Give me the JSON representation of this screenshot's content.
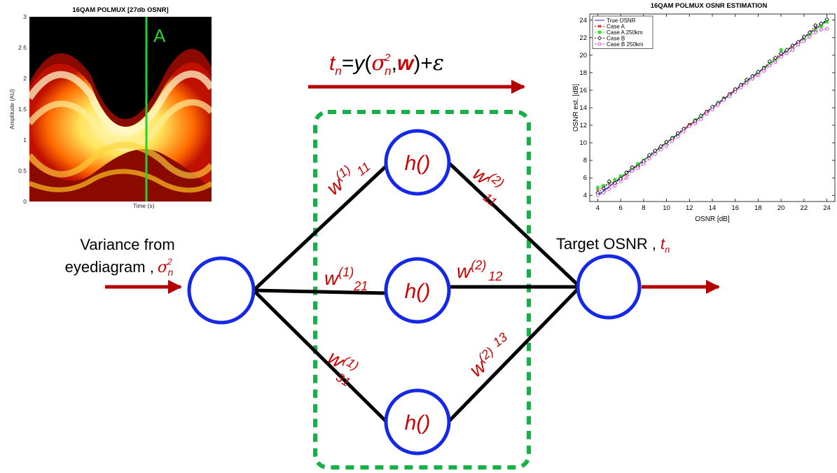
{
  "colors": {
    "red": "#cc0000",
    "arrow_red": "#b30000",
    "node_blue": "#1428e6",
    "link_black": "#000000",
    "box_green": "#17b046",
    "marker_green": "#21d42a",
    "true_osnr": "#2020e0",
    "case_a": "#e01010",
    "case_a_250": "#30e030",
    "case_b": "#000000",
    "case_b_250": "#e020e0"
  },
  "formula": {
    "t": "t",
    "n_sub": "n",
    "eq": "=",
    "y": "y",
    "open": "(",
    "sigma": "σ",
    "sq": "2",
    "n2": "n",
    "comma": ",",
    "w": "w",
    "close": ")",
    "plus": "+",
    "eps": "ε"
  },
  "input": {
    "line1": "Variance from",
    "line2": "eyediagram ,",
    "sigma": "σ",
    "sq": "2",
    "sub": "n"
  },
  "output": {
    "label": "Target OSNR ,",
    "t": "t",
    "sub": "n"
  },
  "hidden_label": "h()",
  "weights": {
    "w": "w",
    "w11_1": {
      "sup": "(1)",
      "sub": "11"
    },
    "w21_1": {
      "sup": "(1)",
      "sub": "21"
    },
    "w31_1": {
      "sup": "(1)",
      "sub": "31"
    },
    "w11_2": {
      "sup": "(2)",
      "sub": "11"
    },
    "w12_2": {
      "sup": "(2)",
      "sub": "12"
    },
    "w13_2": {
      "sup": "(2)",
      "sub": "13"
    }
  },
  "eye": {
    "title": "16QAM POLMUX [27db OSNR]",
    "xlabel": "Time (s)",
    "ylabel": "Amplitude (AU)",
    "yticks": [
      "0",
      "0.5",
      "1",
      "1.5",
      "2",
      "2.5",
      "3"
    ],
    "marker": "A"
  },
  "chart_data": {
    "type": "line",
    "title": "16QAM POLMUX OSNR ESTIMATION",
    "xlabel": "OSNR [dB]",
    "ylabel": "OSNR est. [dB]",
    "xlim": [
      3.3,
      24.7
    ],
    "ylim": [
      3.3,
      24.7
    ],
    "xticks": [
      4,
      6,
      8,
      10,
      12,
      14,
      16,
      18,
      20,
      22,
      24
    ],
    "yticks": [
      4,
      6,
      8,
      10,
      12,
      14,
      16,
      18,
      20,
      22,
      24
    ],
    "grid": false,
    "legend_position": "top-left",
    "x": [
      4,
      4.5,
      5,
      5.5,
      6,
      6.5,
      7,
      7.5,
      8,
      8.5,
      9,
      9.5,
      10,
      10.5,
      11,
      11.5,
      12,
      12.5,
      13,
      13.5,
      14,
      14.5,
      15,
      15.5,
      16,
      16.5,
      17,
      17.5,
      18,
      18.5,
      19,
      19.5,
      20,
      20.5,
      21,
      21.5,
      22,
      22.5,
      23,
      23.5,
      24
    ],
    "series": [
      {
        "name": "True OSNR",
        "marker": "none",
        "values": [
          4,
          4.5,
          5,
          5.5,
          6,
          6.5,
          7,
          7.5,
          8,
          8.5,
          9,
          9.5,
          10,
          10.5,
          11,
          11.5,
          12,
          12.5,
          13,
          13.5,
          14,
          14.5,
          15,
          15.5,
          16,
          16.5,
          17,
          17.5,
          18,
          18.5,
          19,
          19.5,
          20,
          20.5,
          21,
          21.5,
          22,
          22.5,
          23,
          23.5,
          24
        ]
      },
      {
        "name": "Case A",
        "marker": "x",
        "values": [
          4.7,
          4.9,
          5.3,
          5.6,
          6.1,
          6.4,
          6.9,
          7.4,
          8,
          8.4,
          8.9,
          9.5,
          10.1,
          10.4,
          10.9,
          11.5,
          12.1,
          12.4,
          13,
          13.6,
          14,
          14.5,
          14.9,
          15.6,
          16.1,
          16.4,
          17.1,
          17.5,
          17.9,
          18.6,
          19,
          19.4,
          20.1,
          20.5,
          21,
          21.4,
          22,
          22.5,
          23.1,
          23.4,
          23.9
        ]
      },
      {
        "name": "Case A 250km",
        "marker": "square",
        "values": [
          4.9,
          5.1,
          5.5,
          5.8,
          6.2,
          6.6,
          7,
          7.6,
          8,
          8.5,
          9,
          9.4,
          10,
          10.6,
          11,
          11.4,
          12,
          12.6,
          13,
          13.4,
          14,
          14.6,
          15.1,
          15.4,
          16,
          16.6,
          17,
          17.4,
          18,
          18.6,
          19,
          19.5,
          20.6,
          20.3,
          20.6,
          21.2,
          21.7,
          22.3,
          22.8,
          23.3,
          23.8
        ]
      },
      {
        "name": "Case B",
        "marker": "diamond",
        "values": [
          4.3,
          4.8,
          5.6,
          5.4,
          5.9,
          6.6,
          7.2,
          7.3,
          7.9,
          8.6,
          9.1,
          9.6,
          10.1,
          10.5,
          11.1,
          11.6,
          12,
          12.5,
          13.1,
          13.5,
          14.1,
          14.5,
          15,
          15.5,
          16.1,
          16.6,
          17.2,
          17.6,
          18.1,
          18.5,
          19.3,
          19.7,
          20.2,
          20.6,
          21.1,
          21.5,
          22.1,
          22.6,
          23.4,
          23.6,
          24.1
        ]
      },
      {
        "name": "Case B 250km",
        "marker": "circle",
        "values": [
          4,
          4.3,
          4.7,
          5.1,
          5.6,
          6,
          6.8,
          7.1,
          7.6,
          8.2,
          8.7,
          9.2,
          9.6,
          10.2,
          10.7,
          11.3,
          11.9,
          12.2,
          12.7,
          13.3,
          13.8,
          14.3,
          14.9,
          15.3,
          15.8,
          16.3,
          16.8,
          17.3,
          17.7,
          18.2,
          18.8,
          19.2,
          19.8,
          20.2,
          20.6,
          21.2,
          21.6,
          22.1,
          22.6,
          22.9,
          23
        ]
      }
    ]
  }
}
